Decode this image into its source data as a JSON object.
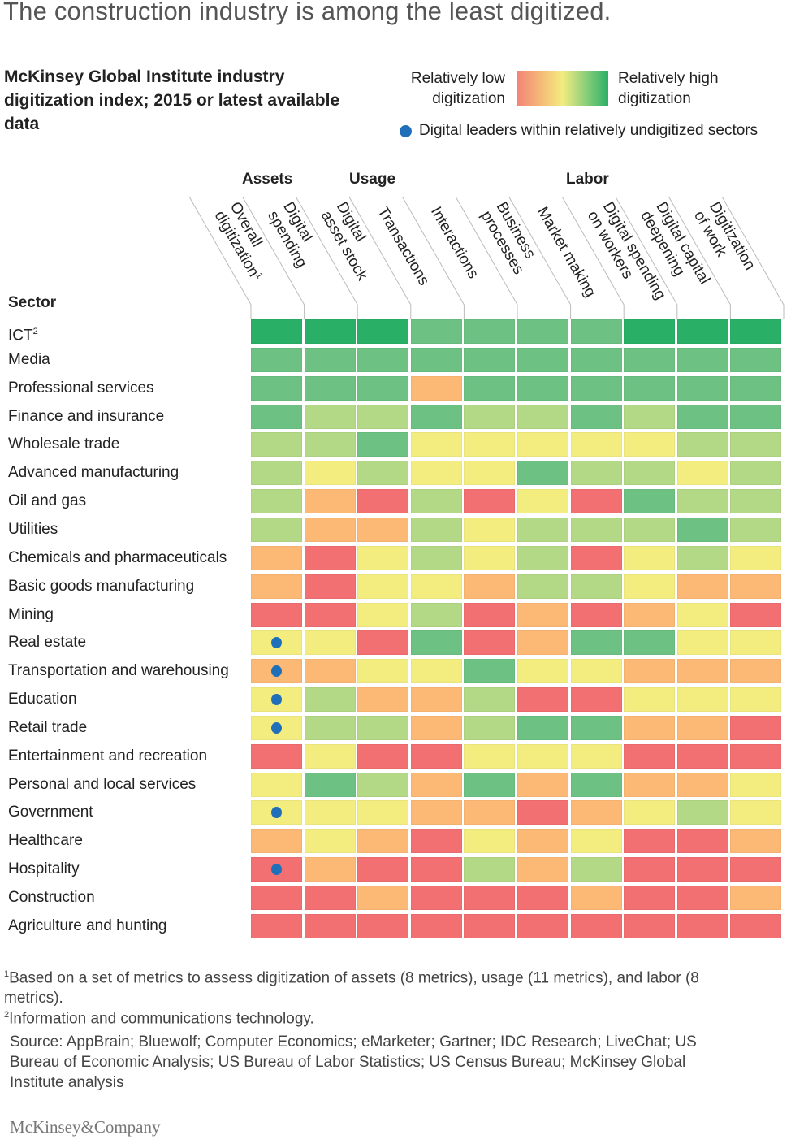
{
  "title": "The construction industry is among the least digitized.",
  "subtitle": "McKinsey Global Institute industry digitization index; 2015 or latest available data",
  "legend": {
    "low_label": "Relatively low digitization",
    "high_label": "Relatively high digitization",
    "leader_label": "Digital leaders within relatively undigitized sectors",
    "leader_color": "#1f70b8"
  },
  "logo": "McKinsey&Company",
  "footnotes": [
    {
      "mark": "1",
      "text": "Based on a set of metrics to assess digitization of assets (8 metrics), usage (11 metrics), and labor (8 metrics)."
    },
    {
      "mark": "2",
      "text": "Information and communications technology."
    }
  ],
  "source": "Source: AppBrain; Bluewolf; Computer Economics; eMarketer; Gartner; IDC Research; LiveChat; US Bureau of Economic Analysis; US Bureau of Labor Statistics; US Census Bureau; McKinsey Global Institute analysis",
  "chart_data": {
    "type": "heatmap",
    "row_header": "Sector",
    "column_groups": [
      {
        "label": "Assets",
        "columns": [
          1,
          2
        ]
      },
      {
        "label": "Usage",
        "columns": [
          3,
          4,
          5,
          6
        ]
      },
      {
        "label": "Labor",
        "columns": [
          7,
          8,
          9
        ]
      }
    ],
    "columns": [
      {
        "label": "Overall digitization",
        "lines": [
          "Overall",
          "digitization"
        ],
        "footnote": "1"
      },
      {
        "label": "Digital spending",
        "lines": [
          "Digital",
          "spending"
        ]
      },
      {
        "label": "Digital asset stock",
        "lines": [
          "Digital",
          "asset stock"
        ]
      },
      {
        "label": "Transactions",
        "lines": [
          "Transactions"
        ]
      },
      {
        "label": "Interactions",
        "lines": [
          "Interactions"
        ]
      },
      {
        "label": "Business processes",
        "lines": [
          "Business",
          "processes"
        ]
      },
      {
        "label": "Market making",
        "lines": [
          "Market making"
        ]
      },
      {
        "label": "Digital spending on workers",
        "lines": [
          "Digital spending",
          "on workers"
        ]
      },
      {
        "label": "Digital capital deepening",
        "lines": [
          "Digital capital",
          "deepening"
        ]
      },
      {
        "label": "Digitization of work",
        "lines": [
          "Digitization",
          "of work"
        ]
      }
    ],
    "scale": {
      "min": 1,
      "max": 6,
      "meaning": "1 = relatively low digitization, 6 = relatively high digitization",
      "colors": [
        "#f26f72",
        "#fcb976",
        "#f3ed80",
        "#b3d886",
        "#6dc183",
        "#2ab066"
      ]
    },
    "rows": [
      {
        "label": "ICT",
        "footnote": "2",
        "values": [
          6,
          6,
          6,
          5,
          5,
          5,
          5,
          6,
          6,
          6
        ],
        "leader": false
      },
      {
        "label": "Media",
        "values": [
          5,
          5,
          5,
          5,
          5,
          5,
          5,
          5,
          5,
          5
        ],
        "leader": false
      },
      {
        "label": "Professional services",
        "values": [
          5,
          5,
          5,
          2,
          5,
          5,
          5,
          5,
          5,
          5
        ],
        "leader": false
      },
      {
        "label": "Finance and insurance",
        "values": [
          5,
          4,
          4,
          5,
          4,
          4,
          5,
          4,
          5,
          5
        ],
        "leader": false
      },
      {
        "label": "Wholesale trade",
        "values": [
          4,
          4,
          5,
          3,
          3,
          3,
          3,
          3,
          4,
          4
        ],
        "leader": false
      },
      {
        "label": "Advanced manufacturing",
        "values": [
          4,
          3,
          4,
          3,
          3,
          5,
          4,
          4,
          3,
          4
        ],
        "leader": false
      },
      {
        "label": "Oil and gas",
        "values": [
          4,
          2,
          1,
          4,
          1,
          3,
          1,
          5,
          4,
          4
        ],
        "leader": false
      },
      {
        "label": "Utilities",
        "values": [
          4,
          2,
          2,
          4,
          3,
          4,
          4,
          4,
          5,
          4
        ],
        "leader": false
      },
      {
        "label": "Chemicals and pharmaceuticals",
        "values": [
          2,
          1,
          3,
          4,
          3,
          4,
          1,
          3,
          4,
          3
        ],
        "leader": false
      },
      {
        "label": "Basic goods manufacturing",
        "values": [
          2,
          1,
          3,
          3,
          2,
          4,
          4,
          3,
          2,
          2
        ],
        "leader": false
      },
      {
        "label": "Mining",
        "values": [
          1,
          1,
          3,
          4,
          1,
          2,
          1,
          2,
          3,
          1
        ],
        "leader": false
      },
      {
        "label": "Real estate",
        "values": [
          3,
          3,
          1,
          5,
          1,
          2,
          5,
          5,
          3,
          3
        ],
        "leader": true
      },
      {
        "label": "Transportation and warehousing",
        "values": [
          2,
          2,
          3,
          3,
          5,
          3,
          3,
          2,
          2,
          2
        ],
        "leader": true
      },
      {
        "label": "Education",
        "values": [
          3,
          4,
          2,
          2,
          4,
          1,
          1,
          3,
          3,
          3
        ],
        "leader": true
      },
      {
        "label": "Retail trade",
        "values": [
          3,
          4,
          4,
          2,
          4,
          5,
          5,
          2,
          2,
          1
        ],
        "leader": true
      },
      {
        "label": "Entertainment and recreation",
        "values": [
          1,
          3,
          1,
          1,
          3,
          3,
          3,
          1,
          1,
          1
        ],
        "leader": false
      },
      {
        "label": "Personal and local services",
        "values": [
          3,
          5,
          4,
          2,
          5,
          2,
          5,
          2,
          2,
          3
        ],
        "leader": false
      },
      {
        "label": "Government",
        "values": [
          3,
          3,
          3,
          2,
          2,
          1,
          2,
          3,
          4,
          3
        ],
        "leader": true
      },
      {
        "label": "Healthcare",
        "values": [
          2,
          3,
          2,
          1,
          3,
          2,
          3,
          1,
          1,
          2
        ],
        "leader": false
      },
      {
        "label": "Hospitality",
        "values": [
          1,
          2,
          1,
          1,
          4,
          2,
          4,
          1,
          1,
          1
        ],
        "leader": true
      },
      {
        "label": "Construction",
        "values": [
          1,
          1,
          2,
          1,
          1,
          1,
          2,
          1,
          1,
          2
        ],
        "leader": false
      },
      {
        "label": "Agriculture and hunting",
        "values": [
          1,
          1,
          1,
          1,
          1,
          1,
          1,
          1,
          1,
          1
        ],
        "leader": false
      }
    ]
  }
}
